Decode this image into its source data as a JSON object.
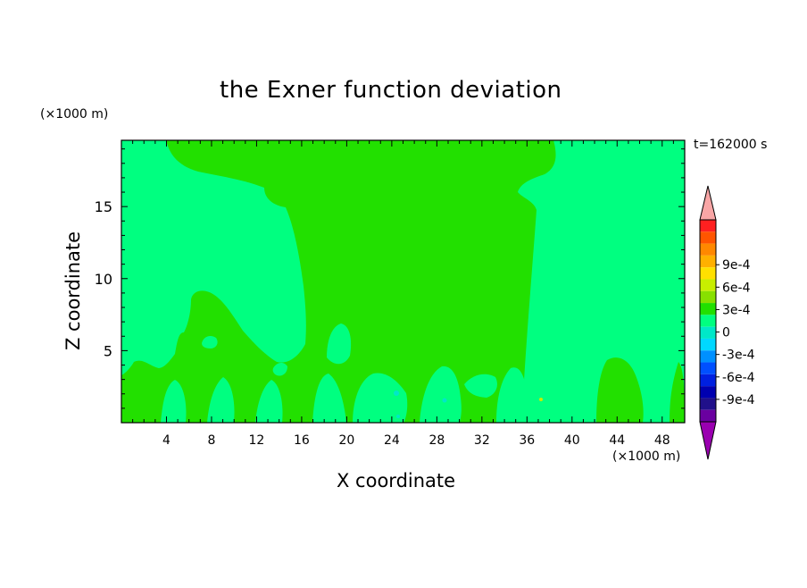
{
  "chart_data": {
    "type": "heatmap",
    "title": "the Exner function deviation",
    "xlabel": "X coordinate",
    "ylabel": "Z coordinate",
    "x_unit": "(×1000 m)",
    "y_unit": "(×1000 m)",
    "time_label": "t=162000 s",
    "xlim": [
      0,
      50
    ],
    "ylim": [
      0,
      19.6
    ],
    "x_ticks": [
      "4",
      "8",
      "12",
      "16",
      "20",
      "24",
      "28",
      "32",
      "36",
      "40",
      "44",
      "48"
    ],
    "y_ticks": [
      "5",
      "10",
      "15"
    ],
    "colorbar": {
      "tick_labels": [
        "9e-4",
        "6e-4",
        "3e-4",
        "0",
        "-3e-4",
        "-6e-4",
        "-9e-4"
      ],
      "tick_values": [
        0.0009,
        0.0006,
        0.0003,
        0,
        -0.0003,
        -0.0006,
        -0.0009
      ],
      "levels_top_to_bottom": [
        "#f9a6a6",
        "#ff2020",
        "#ff5500",
        "#ff8800",
        "#ffb000",
        "#ffe000",
        "#c8ee00",
        "#88e000",
        "#22e000",
        "#00ff80",
        "#00e8c8",
        "#00d8ff",
        "#0090ff",
        "#0050ff",
        "#0020e0",
        "#0000b0",
        "#20108a",
        "#6a00a0",
        "#9a00b0"
      ]
    },
    "background_value": "-1e-4 to 0",
    "background_color": "#00ff80",
    "region_value": "0 to 1e-4",
    "region_color": "#22e000",
    "minor_color": "#00e8c8"
  }
}
